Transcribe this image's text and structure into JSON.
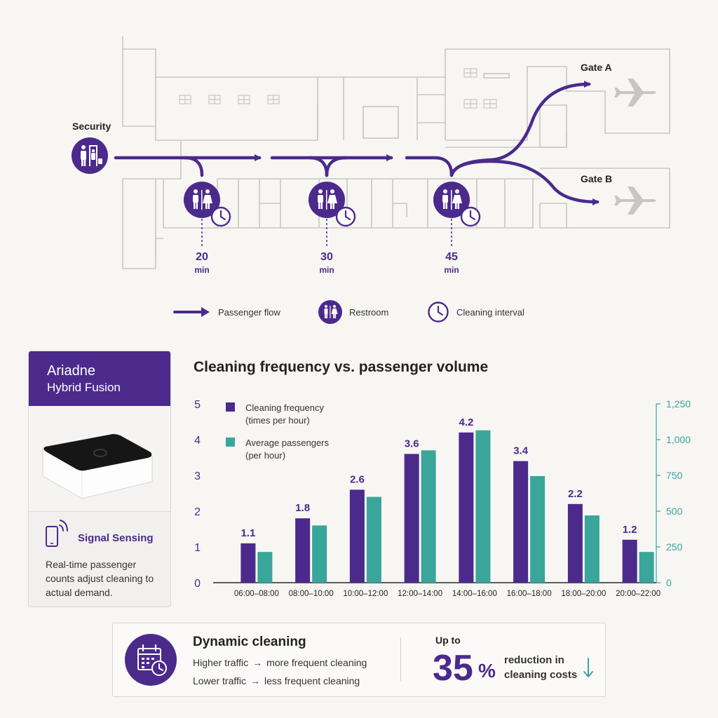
{
  "map": {
    "security_label": "Security",
    "gate_a_label": "Gate A",
    "gate_b_label": "Gate B",
    "restrooms": [
      {
        "interval_value": "20",
        "interval_unit": "min"
      },
      {
        "interval_value": "30",
        "interval_unit": "min"
      },
      {
        "interval_value": "45",
        "interval_unit": "min"
      }
    ]
  },
  "legend": {
    "flow": "Passenger flow",
    "restroom": "Restroom",
    "interval": "Cleaning interval"
  },
  "device_card": {
    "title": "Ariadne",
    "subtitle": "Hybrid Fusion",
    "feature_title": "Signal Sensing",
    "feature_desc": "Real-time passenger counts adjust cleaning to actual demand."
  },
  "chart_data": {
    "type": "bar",
    "title": "Cleaning frequency vs. passenger volume",
    "categories": [
      "06:00–08:00",
      "08:00–10:00",
      "10:00–12:00",
      "12:00–14:00",
      "14:00–16:00",
      "16:00–18:00",
      "18:00–20:00",
      "20:00–22:00"
    ],
    "series": [
      {
        "name": "Cleaning frequency (times per hour)",
        "axis": "left",
        "color": "#4b2a8c",
        "values": [
          1.1,
          1.8,
          2.6,
          3.6,
          4.2,
          3.4,
          2.2,
          1.2
        ],
        "labels": [
          "1.1",
          "1.8",
          "2.6",
          "3.6",
          "4.2",
          "3.4",
          "2.2",
          "1.2"
        ]
      },
      {
        "name": "Average passengers (per hour)",
        "axis": "right",
        "color": "#3aa59a",
        "values": [
          215,
          400,
          600,
          925,
          1065,
          745,
          470,
          215
        ]
      }
    ],
    "left_axis": {
      "ylim": [
        0,
        5
      ],
      "ticks": [
        "0",
        "1",
        "2",
        "3",
        "4",
        "5"
      ]
    },
    "right_axis": {
      "ylim": [
        0,
        1250
      ],
      "ticks": [
        "0",
        "250",
        "500",
        "750",
        "1,000",
        "1,250"
      ]
    },
    "legend_entries": [
      {
        "line1": "Cleaning frequency",
        "line2": "(times per hour)",
        "color": "#4b2a8c"
      },
      {
        "line1": "Average passengers",
        "line2": "(per hour)",
        "color": "#3aa59a"
      }
    ]
  },
  "summary": {
    "title": "Dynamic cleaning",
    "higher_left": "Higher traffic",
    "higher_right": "more frequent cleaning",
    "lower_left": "Lower traffic",
    "lower_right": "less frequent cleaning",
    "arrow": "→",
    "up_to": "Up to",
    "percent_value": "35",
    "percent_sign": "%",
    "reduction_text": "reduction in cleaning costs"
  }
}
